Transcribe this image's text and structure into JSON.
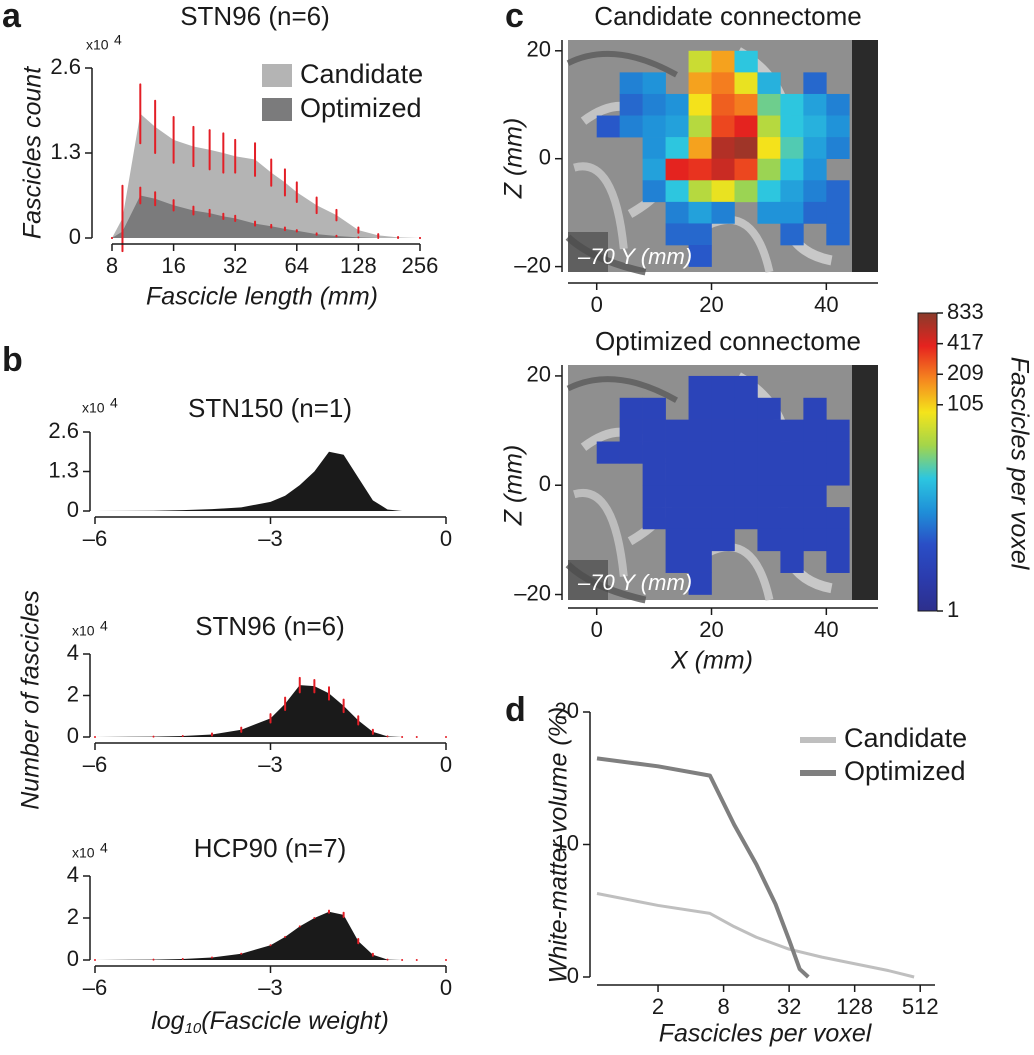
{
  "chart_data": [
    {
      "type": "area",
      "panel_label": "a",
      "title": "STN96 (n=6)",
      "xlabel": "Fascicle length (mm)",
      "ylabel": "Fascicles count",
      "y_multiplier": "x10",
      "y_multiplier_power": "4",
      "xscale": "log",
      "xlim": [
        8,
        256
      ],
      "xticks": [
        8,
        16,
        32,
        64,
        128,
        256
      ],
      "ylim": [
        0,
        2.6
      ],
      "yticks": [
        0,
        1.3,
        2.6
      ],
      "error_color": "#e31e26",
      "x": [
        8,
        9,
        11,
        13,
        16,
        20,
        24,
        28,
        32,
        40,
        48,
        56,
        64,
        80,
        100,
        128,
        160,
        200,
        256
      ],
      "series": [
        {
          "name": "Candidate",
          "color": "#b4b4b4",
          "values": [
            0,
            0.3,
            1.9,
            1.7,
            1.5,
            1.4,
            1.35,
            1.3,
            1.25,
            1.2,
            1.0,
            0.85,
            0.7,
            0.5,
            0.35,
            0.12,
            0.04,
            0.01,
            0
          ],
          "errors": [
            0,
            0.5,
            0.45,
            0.4,
            0.35,
            0.3,
            0.3,
            0.3,
            0.25,
            0.25,
            0.2,
            0.2,
            0.15,
            0.12,
            0.08,
            0.04,
            0.02,
            0.005,
            0
          ]
        },
        {
          "name": "Optimized",
          "color": "#7b7b7c",
          "values": [
            0,
            0.1,
            0.65,
            0.6,
            0.5,
            0.42,
            0.38,
            0.33,
            0.3,
            0.22,
            0.18,
            0.14,
            0.11,
            0.06,
            0.03,
            0.01,
            0,
            0,
            0
          ],
          "errors": [
            0,
            0.1,
            0.12,
            0.1,
            0.08,
            0.06,
            0.05,
            0.04,
            0.04,
            0.03,
            0.02,
            0.02,
            0.01,
            0.01,
            0.005,
            0,
            0,
            0,
            0
          ]
        }
      ]
    },
    {
      "type": "area",
      "panel_label": "b",
      "title": "STN150 (n=1)",
      "y_multiplier": "x10",
      "y_multiplier_power": "4",
      "xlim": [
        -6,
        0
      ],
      "xticks": [
        {
          "value": -6,
          "label": "–6"
        },
        {
          "value": -3,
          "label": "–3"
        },
        0
      ],
      "ylim": [
        0,
        2.6
      ],
      "yticks": [
        0,
        1.3,
        2.6
      ],
      "color": "#1a1a1a",
      "x": [
        -6,
        -5,
        -4.5,
        -4,
        -3.5,
        -3,
        -2.75,
        -2.5,
        -2.25,
        -2,
        -1.75,
        -1.5,
        -1.25,
        -1,
        -0.75,
        -0.5,
        0
      ],
      "values": [
        0,
        0.01,
        0.03,
        0.06,
        0.12,
        0.3,
        0.5,
        0.85,
        1.3,
        1.95,
        1.85,
        1.1,
        0.35,
        0.05,
        0,
        0,
        0
      ]
    },
    {
      "type": "area",
      "title": "STN96 (n=6)",
      "ylabel": "Number of fascicles",
      "y_multiplier": "x10",
      "y_multiplier_power": "4",
      "xlim": [
        -6,
        0
      ],
      "xticks": [
        {
          "value": -6,
          "label": "–6"
        },
        {
          "value": -3,
          "label": "–3"
        },
        0
      ],
      "ylim": [
        0,
        4
      ],
      "yticks": [
        0,
        2,
        4
      ],
      "color": "#1a1a1a",
      "error_color": "#e31e26",
      "x": [
        -6,
        -5,
        -4.5,
        -4,
        -3.5,
        -3,
        -2.75,
        -2.5,
        -2.25,
        -2,
        -1.75,
        -1.5,
        -1.25,
        -1,
        -0.75,
        -0.5,
        0
      ],
      "values": [
        0,
        0.02,
        0.05,
        0.12,
        0.35,
        0.9,
        1.6,
        2.5,
        2.45,
        2.1,
        1.5,
        0.8,
        0.25,
        0.03,
        0,
        0,
        0
      ],
      "errors": [
        0,
        0,
        0,
        0.05,
        0.1,
        0.2,
        0.3,
        0.35,
        0.3,
        0.3,
        0.3,
        0.2,
        0.1,
        0,
        0,
        0,
        0
      ]
    },
    {
      "type": "area",
      "title": "HCP90 (n=7)",
      "xlabel": [
        "log",
        "10",
        "(Fascicle weight)"
      ],
      "y_multiplier": "x10",
      "y_multiplier_power": "4",
      "xlim": [
        -6,
        0
      ],
      "xticks": [
        {
          "value": -6,
          "label": "–6"
        },
        {
          "value": -3,
          "label": "–3"
        },
        0
      ],
      "ylim": [
        0,
        4
      ],
      "yticks": [
        0,
        2,
        4
      ],
      "color": "#1a1a1a",
      "error_color": "#e31e26",
      "x": [
        -6,
        -5,
        -4.5,
        -4,
        -3.5,
        -3,
        -2.75,
        -2.5,
        -2.25,
        -2,
        -1.75,
        -1.5,
        -1.25,
        -1,
        -0.75,
        -0.5,
        0
      ],
      "values": [
        0,
        0.02,
        0.05,
        0.12,
        0.3,
        0.7,
        1.1,
        1.6,
        2.0,
        2.3,
        2.15,
        0.9,
        0.25,
        0.02,
        0,
        0,
        0
      ],
      "errors": [
        0,
        0,
        0,
        0,
        0,
        0,
        0,
        0,
        0,
        0.05,
        0.1,
        0.1,
        0.05,
        0,
        0,
        0,
        0
      ]
    },
    {
      "type": "heatmap",
      "panel_label": "c",
      "title": "Candidate connectome",
      "ylabel": "Z (mm)",
      "slice_label": "–70 Y (mm)",
      "xlim": [
        -5,
        49
      ],
      "xticks": [
        0,
        20,
        40
      ],
      "ylim": [
        -21,
        22
      ],
      "yticks": [
        {
          "value": -20,
          "label": "–20"
        },
        0,
        20
      ],
      "clim": [
        1,
        833
      ],
      "cscale": "log",
      "colormap": [
        "#2d2f8c",
        "#2b3cae",
        "#2a4ec6",
        "#1f8fd8",
        "#2cc6e0",
        "#a3d54a",
        "#f4e41b",
        "#f5861f",
        "#e6231f",
        "#8a3b2b"
      ],
      "x": [
        2,
        6,
        10,
        14,
        18,
        22,
        26,
        30,
        34,
        38,
        42,
        46
      ],
      "z": [
        18,
        14,
        10,
        6,
        2,
        -2,
        -6,
        -10,
        -14,
        -18
      ],
      "values": [
        [
          null,
          null,
          null,
          null,
          60,
          150,
          20,
          null,
          null,
          null,
          null,
          null
        ],
        [
          null,
          8,
          10,
          null,
          150,
          200,
          80,
          15,
          null,
          6,
          null,
          null
        ],
        [
          null,
          6,
          8,
          10,
          90,
          250,
          200,
          30,
          20,
          12,
          8,
          null
        ],
        [
          5,
          8,
          10,
          12,
          50,
          300,
          400,
          50,
          20,
          15,
          10,
          null
        ],
        [
          null,
          null,
          10,
          20,
          150,
          600,
          700,
          90,
          25,
          12,
          8,
          null
        ],
        [
          null,
          null,
          12,
          400,
          350,
          500,
          300,
          40,
          18,
          10,
          null,
          null
        ],
        [
          null,
          null,
          8,
          20,
          50,
          80,
          40,
          20,
          12,
          8,
          6,
          null
        ],
        [
          null,
          null,
          null,
          8,
          12,
          8,
          null,
          10,
          10,
          6,
          6,
          null
        ],
        [
          null,
          null,
          null,
          6,
          6,
          null,
          null,
          null,
          6,
          null,
          6,
          null
        ],
        [
          null,
          null,
          null,
          null,
          5,
          null,
          null,
          null,
          null,
          null,
          null,
          null
        ]
      ]
    },
    {
      "type": "heatmap",
      "title": "Optimized connectome",
      "ylabel": "Z (mm)",
      "xlabel": "X (mm)",
      "slice_label": "–70 Y (mm)",
      "xlim": [
        -5,
        49
      ],
      "xticks": [
        0,
        20,
        40
      ],
      "ylim": [
        -21,
        22
      ],
      "yticks": [
        {
          "value": -20,
          "label": "–20"
        },
        0,
        20
      ],
      "clim": [
        1,
        833
      ],
      "cscale": "log",
      "colormap": [
        "#2d2f8c",
        "#2b3cae",
        "#2a4ec6",
        "#1f8fd8",
        "#2cc6e0",
        "#a3d54a",
        "#f4e41b",
        "#f5861f",
        "#e6231f",
        "#8a3b2b"
      ],
      "colorbar": {
        "ticks": [
          1,
          105,
          209,
          417,
          833
        ],
        "label": "Fascicles per voxel"
      },
      "x": [
        2,
        6,
        10,
        14,
        18,
        22,
        26,
        30,
        34,
        38,
        42,
        46
      ],
      "z": [
        18,
        14,
        10,
        6,
        2,
        -2,
        -6,
        -10,
        -14,
        -18
      ],
      "values": [
        [
          null,
          null,
          null,
          null,
          3,
          3,
          3,
          null,
          null,
          null,
          null,
          null
        ],
        [
          null,
          3,
          3,
          null,
          3,
          3,
          3,
          3,
          null,
          3,
          null,
          null
        ],
        [
          null,
          3,
          3,
          3,
          3,
          3,
          3,
          3,
          3,
          3,
          3,
          null
        ],
        [
          3,
          3,
          3,
          3,
          3,
          3,
          3,
          3,
          3,
          3,
          3,
          null
        ],
        [
          null,
          null,
          3,
          3,
          3,
          3,
          3,
          3,
          3,
          3,
          3,
          null
        ],
        [
          null,
          null,
          3,
          3,
          3,
          3,
          3,
          3,
          3,
          3,
          null,
          null
        ],
        [
          null,
          null,
          3,
          3,
          3,
          3,
          3,
          3,
          3,
          3,
          3,
          null
        ],
        [
          null,
          null,
          null,
          3,
          3,
          3,
          null,
          3,
          3,
          3,
          3,
          null
        ],
        [
          null,
          null,
          null,
          3,
          3,
          null,
          null,
          null,
          3,
          null,
          3,
          null
        ],
        [
          null,
          null,
          null,
          null,
          3,
          null,
          null,
          null,
          null,
          null,
          null,
          null
        ]
      ]
    },
    {
      "type": "line",
      "panel_label": "d",
      "xlabel": "Fascicles per voxel",
      "ylabel": "White-matter volume (%)",
      "xscale": "log",
      "xlim": [
        0.55,
        700
      ],
      "xticks": [
        2,
        8,
        32,
        128,
        512
      ],
      "ylim": [
        0,
        20
      ],
      "yticks": [
        0,
        10,
        20
      ],
      "series": [
        {
          "name": "Candidate",
          "color": "#bfbfbf",
          "x": [
            0.55,
            2,
            6,
            10,
            16,
            32,
            64,
            128,
            256,
            450
          ],
          "values": [
            6.3,
            5.4,
            4.8,
            3.8,
            3.0,
            2.1,
            1.5,
            1.0,
            0.5,
            0
          ]
        },
        {
          "name": "Optimized",
          "color": "#7f7f7f",
          "x": [
            0.55,
            2,
            6,
            10,
            16,
            24,
            32,
            40,
            48
          ],
          "values": [
            16.5,
            15.9,
            15.2,
            11.5,
            8.5,
            5.5,
            2.8,
            0.6,
            0
          ]
        }
      ]
    }
  ]
}
